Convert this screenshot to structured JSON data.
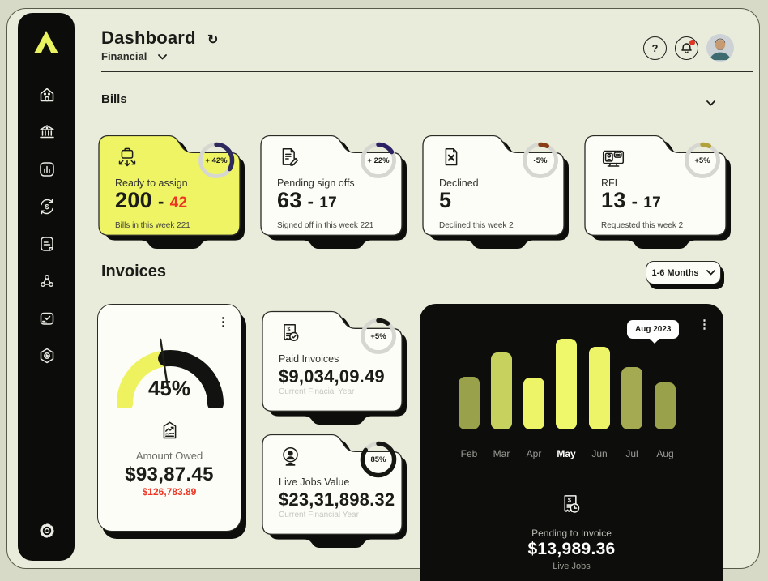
{
  "icons": {
    "refresh": "↻",
    "help": "?",
    "kebab": "⋮"
  },
  "header": {
    "title": "Dashboard",
    "nav_label": "Financial"
  },
  "sidebar": {
    "items": [
      "home-icon",
      "bank-icon",
      "analytics-icon",
      "money-transfer-icon",
      "invoice-icon",
      "network-icon",
      "inbox-icon",
      "workflow-icon"
    ],
    "footer": "settings-gear-icon"
  },
  "bills": {
    "title": "Bills",
    "cards": [
      {
        "icon": "assign-briefcase-icon",
        "bg": "#eef464",
        "label": "Ready to assign",
        "value": "200",
        "separator": "-",
        "value_suffix": "42",
        "subtext": "Bills in this week 221",
        "ring": {
          "label": "+ 42%",
          "arc_percent": 34,
          "color": "#2e2a5e"
        }
      },
      {
        "icon": "sign-off-document-icon",
        "bg": "#fdfdf7",
        "label": "Pending sign offs",
        "value": "63",
        "separator": "-",
        "value_suffix": "17",
        "subtext": "Signed off in this week 221",
        "ring": {
          "label": "+ 22%",
          "arc_percent": 16,
          "color": "#2c2163"
        }
      },
      {
        "icon": "declined-document-icon",
        "bg": "#fdfdf7",
        "label": "Declined",
        "value": "5",
        "separator": "",
        "value_suffix": "",
        "subtext": "Declined this week 2",
        "ring": {
          "label": "-5%",
          "arc_percent": 7,
          "color": "#8a3e16"
        }
      },
      {
        "icon": "rfi-request-icon",
        "bg": "#fdfdf7",
        "label": "RFI",
        "value": "13",
        "separator": "-",
        "value_suffix": "17",
        "subtext": "Requested this week 2",
        "ring": {
          "label": "+5%",
          "arc_percent": 7,
          "color": "#b3a23c"
        }
      }
    ]
  },
  "invoices": {
    "title": "Invoices",
    "filter": {
      "label": "1-6 Months"
    },
    "amount_owed": {
      "icon": "amount-owed-report-icon",
      "percent": 45,
      "percent_label": "45%",
      "label": "Amount Owed",
      "value": "$93,87.45",
      "previous_value": "$126,783.89"
    },
    "paid": {
      "icon": "paid-invoice-receipt-icon",
      "bg": "#fdfdf7",
      "label": "Paid Invoices",
      "value": "$9,034,09.49",
      "subtext": "Current Finacial Year",
      "ring": {
        "label": "+5%",
        "arc_percent": 10,
        "color": "#161612"
      }
    },
    "live_jobs": {
      "icon": "live-jobs-webcam-icon",
      "bg": "#fdfdf7",
      "label": "Live Jobs Value",
      "value": "$23,31,898.32",
      "subtext": "Current Financial Year",
      "ring": {
        "label": "85%",
        "arc_percent": 85,
        "color": "#161612"
      }
    }
  },
  "chart_data": {
    "type": "bar",
    "title": "",
    "categories": [
      "Feb",
      "Mar",
      "Apr",
      "May",
      "Jun",
      "Jul",
      "Aug"
    ],
    "values": [
      58,
      85,
      57,
      100,
      91,
      69,
      52
    ],
    "unit": "relative-height-percent (y-axis not shown in UI)",
    "bar_colors": [
      "#99a14b",
      "#c6d25d",
      "#edf467",
      "#eff76b",
      "#edf467",
      "#a3aa52",
      "#99a14b"
    ],
    "highlighted_category": "May",
    "tooltip": "Aug 2023",
    "footer": {
      "icon": "pending-invoice-receipt-icon",
      "label": "Pending to Invoice",
      "value": "$13,989.36",
      "subtext": "Live Jobs"
    }
  },
  "colors": {
    "outer_bg": "#d6dac6",
    "frame_bg": "#e9ecdb",
    "sidebar_bg": "#0c0c0a",
    "card_white": "#fdfdf7",
    "card_yellow": "#eef464",
    "accent_red": "#ee3524",
    "ring_track": "#d7d7d2",
    "dark_panel": "#0d0d0b",
    "logo_yellow": "#e9f35f"
  }
}
